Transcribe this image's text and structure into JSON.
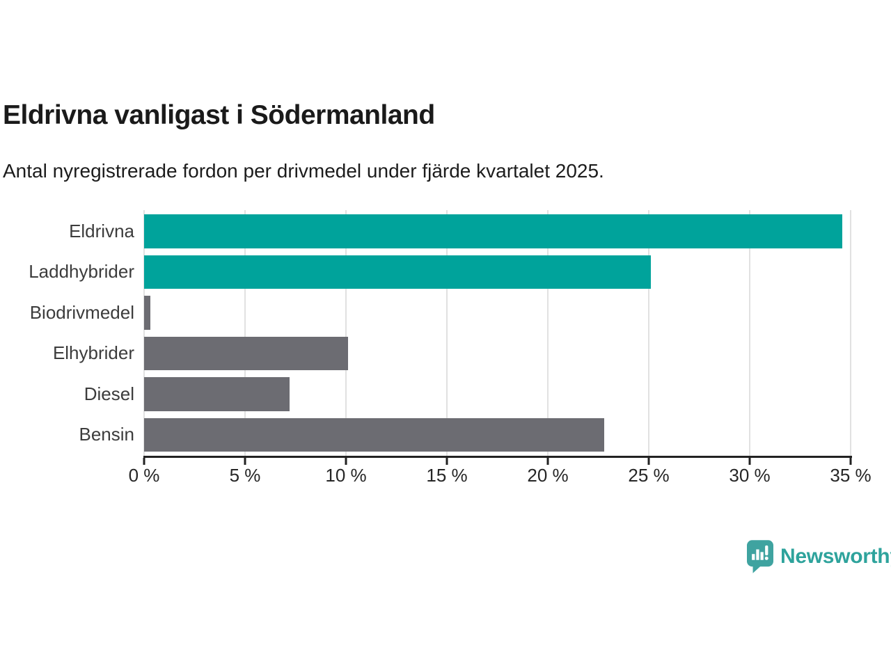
{
  "header": {
    "title": "Eldrivna vanligast i Södermanland",
    "subtitle": "Antal nyregistrerade fordon per drivmedel under fjärde kvartalet 2025."
  },
  "chart_data": {
    "type": "bar",
    "orientation": "horizontal",
    "title": "Eldrivna vanligast i Södermanland",
    "subtitle": "Antal nyregistrerade fordon per drivmedel under fjärde kvartalet 2025.",
    "categories": [
      "Eldrivna",
      "Laddhybrider",
      "Biodrivmedel",
      "Elhybrider",
      "Diesel",
      "Bensin"
    ],
    "values": [
      34.6,
      25.1,
      0.3,
      10.1,
      7.2,
      22.8
    ],
    "unit": "%",
    "xlim": [
      0,
      35
    ],
    "x_ticks": [
      0,
      5,
      10,
      15,
      20,
      25,
      30,
      35
    ],
    "x_tick_labels": [
      "0 %",
      "5 %",
      "10 %",
      "15 %",
      "20 %",
      "25 %",
      "30 %",
      "35 %"
    ],
    "grid": true,
    "legend": "none",
    "colors": {
      "highlight": "#00A39B",
      "default": "#6C6C72",
      "gridline": "#E1E1E1",
      "axis": "#222222"
    },
    "bar_colors": [
      "#00A39B",
      "#00A39B",
      "#6C6C72",
      "#6C6C72",
      "#6C6C72",
      "#6C6C72"
    ]
  },
  "footer": {
    "brand": "Newsworthy",
    "brand_color": "#2EA39C",
    "logo_icon": "bar-chart-speech-bubble-icon"
  }
}
